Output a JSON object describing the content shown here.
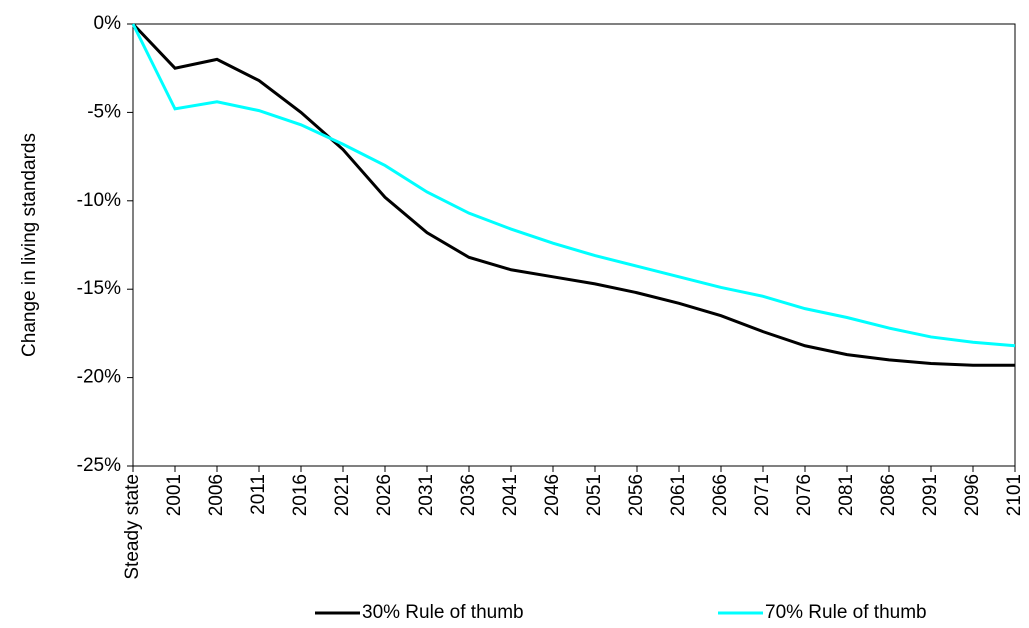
{
  "chart_data": {
    "type": "line",
    "y_label": "Change in living standards",
    "categories": [
      "Steady state",
      "2001",
      "2006",
      "2011",
      "2016",
      "2021",
      "2026",
      "2031",
      "2036",
      "2041",
      "2046",
      "2051",
      "2056",
      "2061",
      "2066",
      "2071",
      "2076",
      "2081",
      "2086",
      "2091",
      "2096",
      "2101"
    ],
    "series": [
      {
        "name": "30% Rule of thumb",
        "color": "#000000",
        "values": [
          0,
          -2.5,
          -2.0,
          -3.2,
          -5.0,
          -7.1,
          -9.8,
          -11.8,
          -13.2,
          -13.9,
          -14.3,
          -14.7,
          -15.2,
          -15.8,
          -16.5,
          -17.4,
          -18.2,
          -18.7,
          -19.0,
          -19.2,
          -19.3,
          -19.3
        ]
      },
      {
        "name": "70% Rule of thumb",
        "color": "#00ffff",
        "values": [
          0,
          -4.8,
          -4.4,
          -4.9,
          -5.7,
          -6.8,
          -8.0,
          -9.5,
          -10.7,
          -11.6,
          -12.4,
          -13.1,
          -13.7,
          -14.3,
          -14.9,
          -15.4,
          -16.1,
          -16.6,
          -17.2,
          -17.7,
          -18.0,
          -18.2
        ]
      }
    ],
    "ylim": [
      -25,
      0
    ],
    "yticks": [
      {
        "value": -25,
        "label": "-25%"
      },
      {
        "value": -20,
        "label": "-20%"
      },
      {
        "value": -15,
        "label": "-15%"
      },
      {
        "value": -10,
        "label": "-10%"
      },
      {
        "value": -5,
        "label": "-5%"
      },
      {
        "value": 0,
        "label": "0%"
      }
    ],
    "legend": "bottom"
  }
}
